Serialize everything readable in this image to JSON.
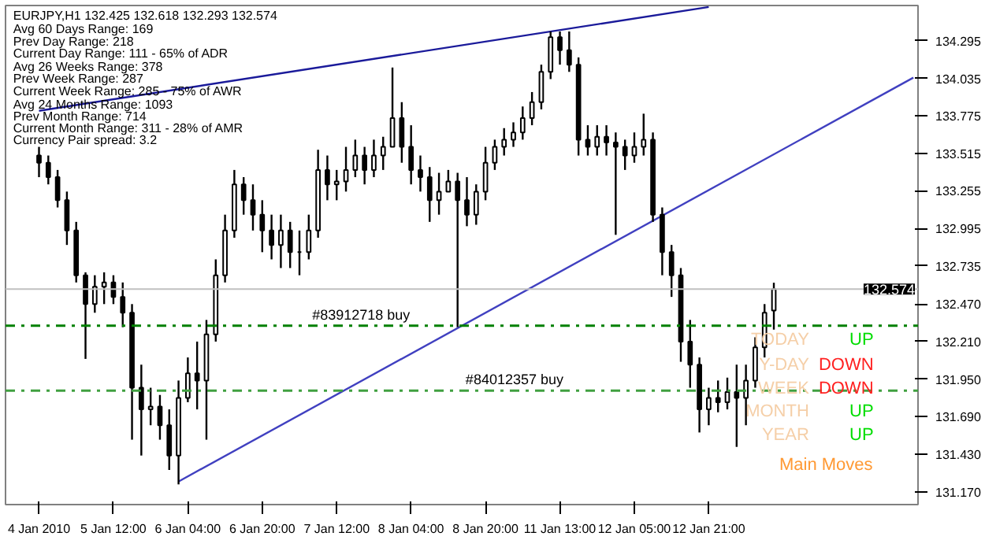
{
  "chart_data": {
    "type": "candlestick",
    "title": "EURJPY,H1  132.425 132.618 132.293 132.574",
    "color": "#000000",
    "categories": [
      "4 Jan 2010",
      null,
      null,
      null,
      null,
      null,
      null,
      null,
      "5 Jan 12:00",
      null,
      null,
      null,
      null,
      null,
      null,
      null,
      "6 Jan 04:00",
      null,
      null,
      null,
      null,
      null,
      null,
      null,
      "6 Jan 20:00",
      null,
      null,
      null,
      null,
      null,
      null,
      null,
      "7 Jan 12:00",
      null,
      null,
      null,
      null,
      null,
      null,
      null,
      "8 Jan 04:00",
      null,
      null,
      null,
      null,
      null,
      null,
      null,
      "8 Jan 20:00",
      null,
      null,
      null,
      null,
      null,
      null,
      null,
      "11 Jan 13:00",
      null,
      null,
      null,
      null,
      null,
      null,
      null,
      "12 Jan 05:00",
      null,
      null,
      null,
      null,
      null,
      null,
      null,
      "12 Jan 21:00",
      null,
      null,
      null,
      null,
      null,
      null,
      null,
      null,
      null,
      null,
      null,
      null,
      null,
      null,
      null,
      null,
      null,
      null,
      null,
      null,
      null,
      null
    ],
    "ohlc": [
      [
        133.5,
        133.56,
        133.35,
        133.45
      ],
      [
        133.45,
        133.5,
        133.3,
        133.35
      ],
      [
        133.35,
        133.4,
        133.14,
        133.19
      ],
      [
        133.19,
        133.25,
        132.88,
        132.98
      ],
      [
        132.98,
        133.04,
        132.62,
        132.67
      ],
      [
        132.67,
        132.69,
        132.09,
        132.47
      ],
      [
        132.47,
        132.67,
        132.41,
        132.59
      ],
      [
        132.59,
        132.69,
        132.47,
        132.62
      ],
      [
        132.62,
        132.67,
        132.47,
        132.52
      ],
      [
        132.52,
        132.62,
        132.31,
        132.41
      ],
      [
        132.41,
        132.47,
        131.53,
        131.89
      ],
      [
        131.89,
        132.05,
        131.42,
        131.74
      ],
      [
        131.74,
        131.89,
        131.63,
        131.76
      ],
      [
        131.76,
        131.84,
        131.53,
        131.63
      ],
      [
        131.63,
        131.74,
        131.32,
        131.42
      ],
      [
        131.42,
        131.94,
        131.22,
        131.82
      ],
      [
        131.82,
        132.1,
        131.79,
        131.99
      ],
      [
        131.99,
        132.21,
        131.74,
        131.94
      ],
      [
        131.94,
        132.36,
        131.53,
        132.26
      ],
      [
        132.26,
        132.78,
        132.21,
        132.67
      ],
      [
        132.67,
        133.09,
        132.62,
        132.98
      ],
      [
        132.98,
        133.4,
        132.93,
        133.3
      ],
      [
        133.3,
        133.35,
        133.09,
        133.19
      ],
      [
        133.19,
        133.3,
        132.98,
        133.09
      ],
      [
        133.09,
        133.19,
        132.83,
        132.98
      ],
      [
        132.98,
        133.09,
        132.78,
        132.88
      ],
      [
        132.88,
        133.09,
        132.72,
        132.98
      ],
      [
        132.98,
        133.04,
        132.72,
        132.83
      ],
      [
        132.83,
        132.98,
        132.67,
        132.83
      ],
      [
        132.83,
        133.09,
        132.78,
        132.98
      ],
      [
        132.98,
        133.54,
        132.93,
        133.4
      ],
      [
        133.4,
        133.5,
        133.19,
        133.3
      ],
      [
        133.3,
        133.4,
        133.19,
        133.32
      ],
      [
        133.32,
        133.56,
        133.25,
        133.4
      ],
      [
        133.4,
        133.61,
        133.35,
        133.5
      ],
      [
        133.5,
        133.56,
        133.3,
        133.4
      ],
      [
        133.4,
        133.61,
        133.35,
        133.5
      ],
      [
        133.5,
        133.63,
        133.4,
        133.56
      ],
      [
        133.56,
        134.11,
        133.56,
        133.76
      ],
      [
        133.76,
        133.87,
        133.45,
        133.56
      ],
      [
        133.56,
        133.71,
        133.3,
        133.4
      ],
      [
        133.4,
        133.5,
        133.25,
        133.35
      ],
      [
        133.35,
        133.42,
        133.04,
        133.19
      ],
      [
        133.19,
        133.38,
        133.09,
        133.25
      ],
      [
        133.25,
        133.4,
        133.25,
        133.32
      ],
      [
        133.32,
        133.38,
        132.31,
        133.19
      ],
      [
        133.19,
        133.35,
        133.01,
        133.09
      ],
      [
        133.09,
        133.3,
        133.02,
        133.25
      ],
      [
        133.25,
        133.56,
        133.19,
        133.45
      ],
      [
        133.45,
        133.61,
        133.4,
        133.56
      ],
      [
        133.56,
        133.69,
        133.5,
        133.61
      ],
      [
        133.61,
        133.73,
        133.56,
        133.66
      ],
      [
        133.66,
        133.84,
        133.61,
        133.76
      ],
      [
        133.76,
        133.94,
        133.71,
        133.87
      ],
      [
        133.87,
        134.13,
        133.82,
        134.08
      ],
      [
        134.08,
        134.36,
        134.03,
        134.32
      ],
      [
        134.32,
        134.36,
        134.13,
        134.23
      ],
      [
        134.23,
        134.36,
        134.08,
        134.13
      ],
      [
        134.13,
        134.18,
        133.5,
        133.61
      ],
      [
        133.61,
        133.71,
        133.5,
        133.56
      ],
      [
        133.56,
        133.71,
        133.5,
        133.63
      ],
      [
        133.63,
        133.71,
        133.5,
        133.59
      ],
      [
        133.59,
        133.66,
        132.95,
        133.56
      ],
      [
        133.56,
        133.61,
        133.4,
        133.5
      ],
      [
        133.5,
        133.66,
        133.45,
        133.56
      ],
      [
        133.56,
        133.79,
        133.5,
        133.61
      ],
      [
        133.61,
        133.66,
        133.04,
        133.09
      ],
      [
        133.09,
        133.14,
        132.67,
        132.83
      ],
      [
        132.83,
        132.88,
        132.52,
        132.67
      ],
      [
        132.67,
        132.72,
        132.07,
        132.21
      ],
      [
        132.21,
        132.36,
        131.89,
        132.05
      ],
      [
        132.05,
        132.1,
        131.58,
        131.74
      ],
      [
        131.74,
        131.89,
        131.63,
        131.82
      ],
      [
        131.82,
        131.94,
        131.72,
        131.79
      ],
      [
        131.79,
        131.96,
        131.74,
        131.86
      ],
      [
        131.86,
        132.05,
        131.48,
        131.82
      ],
      [
        131.82,
        132.05,
        131.63,
        131.94
      ],
      [
        131.94,
        132.24,
        131.89,
        132.17
      ],
      [
        132.17,
        132.47,
        132.1,
        132.41
      ],
      [
        132.425,
        132.618,
        132.293,
        132.574
      ],
      null,
      null,
      null,
      null,
      null,
      null,
      null,
      null,
      null,
      null,
      null,
      null,
      null,
      null,
      null
    ],
    "series": [
      {
        "type": "line",
        "color": "#1a1a9a",
        "values": [
          133.81,
          null,
          null,
          null,
          null,
          null,
          null,
          null,
          null,
          null,
          null,
          null,
          null,
          null,
          null,
          null,
          null,
          null,
          null,
          null,
          null,
          null,
          null,
          null,
          null,
          null,
          null,
          null,
          null,
          null,
          null,
          null,
          null,
          null,
          null,
          null,
          null,
          null,
          null,
          null,
          null,
          null,
          null,
          null,
          null,
          null,
          null,
          null,
          null,
          null,
          null,
          null,
          null,
          null,
          null,
          null,
          null,
          null,
          null,
          null,
          null,
          null,
          null,
          null,
          null,
          null,
          null,
          null,
          null,
          null,
          null,
          null,
          134.53,
          null,
          null,
          null,
          null,
          null,
          null,
          null,
          null,
          null,
          null,
          null,
          null,
          null,
          null,
          null,
          null,
          null,
          null,
          null,
          null,
          null,
          null
        ]
      },
      {
        "type": "line",
        "color": "#4040c0",
        "values": [
          null,
          null,
          null,
          null,
          null,
          null,
          null,
          null,
          null,
          null,
          null,
          null,
          null,
          null,
          null,
          131.24,
          null,
          null,
          null,
          null,
          null,
          null,
          null,
          null,
          null,
          null,
          null,
          null,
          null,
          null,
          null,
          null,
          null,
          null,
          null,
          null,
          null,
          null,
          null,
          null,
          null,
          null,
          null,
          null,
          null,
          null,
          null,
          null,
          null,
          null,
          null,
          null,
          null,
          null,
          null,
          null,
          null,
          null,
          null,
          null,
          null,
          null,
          null,
          null,
          null,
          null,
          null,
          null,
          null,
          null,
          null,
          null,
          null,
          null,
          null,
          null,
          null,
          null,
          null,
          null,
          null,
          null,
          null,
          null,
          null,
          null,
          null,
          null,
          null,
          null,
          null,
          null,
          null,
          null,
          134.04
        ]
      }
    ],
    "ylim": [
      131.08,
      134.54
    ],
    "yticks": [
      {
        "value": 134.295,
        "label": "134.295"
      },
      {
        "value": 134.035,
        "label": "134.035"
      },
      {
        "value": 133.775,
        "label": "133.775"
      },
      {
        "value": 133.515,
        "label": "133.515"
      },
      {
        "value": 133.255,
        "label": "133.255"
      },
      {
        "value": 132.995,
        "label": "132.995"
      },
      {
        "value": 132.735,
        "label": "132.735"
      },
      {
        "value": 132.47,
        "label": "132.470"
      },
      {
        "value": 132.21,
        "label": "132.210"
      },
      {
        "value": 131.95,
        "label": "131.950"
      },
      {
        "value": 131.69,
        "label": "131.690"
      },
      {
        "value": 131.43,
        "label": "131.430"
      },
      {
        "value": 131.17,
        "label": "131.170"
      }
    ],
    "ref_lines": [
      {
        "axis": "y",
        "value": 132.574,
        "label": "132.574",
        "color": "#c0c0c0",
        "line_style": "solid"
      },
      {
        "axis": "y",
        "value": 132.32,
        "label": "#83912718 buy",
        "color": "#008000",
        "line_style": "dashdot"
      },
      {
        "axis": "y",
        "value": 131.87,
        "label": "#84012357 buy",
        "color": "#40a040",
        "line_style": "dashdot"
      }
    ],
    "annotations": [
      "Avg 60 Days Range: 169",
      "Prev Day Range: 218",
      "Current Day Range: 111 - 65% of ADR",
      "Avg 26 Weeks Range: 378",
      "Prev Week Range: 287",
      "Current Week Range: 285 - 75% of AWR",
      "Avg 24 Months Range: 1093",
      "Prev Month Range: 714",
      "Current Month Range: 311 - 28% of AMR",
      "Currency Pair spread: 3.2",
      "TODAY",
      "UP",
      "Y-DAY",
      "DOWN",
      "WEEK",
      "DOWN",
      "MONTH",
      "UP",
      "YEAR",
      "UP",
      "Main Moves"
    ],
    "grid": false
  }
}
